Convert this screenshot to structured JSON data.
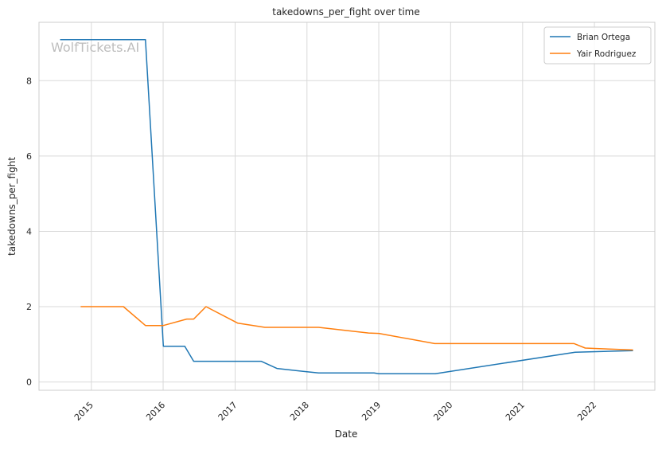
{
  "watermark": "WolfTickets.AI",
  "chart_data": {
    "type": "line",
    "title": "takedowns_per_fight over time",
    "xlabel": "Date",
    "ylabel": "takedowns_per_fight",
    "x_ticks": [
      "2015",
      "2016",
      "2017",
      "2018",
      "2019",
      "2020",
      "2021",
      "2022"
    ],
    "y_ticks": [
      0,
      2,
      4,
      6,
      8
    ],
    "xlim": [
      "2014-04-10",
      "2022-11-04"
    ],
    "ylim": [
      -0.22,
      9.55
    ],
    "grid": true,
    "legend_position": "top-right",
    "series": [
      {
        "name": "Brian Ortega",
        "color": "#1f77b4",
        "points": [
          [
            "2014-07-26",
            9.09
          ],
          [
            "2015-10-03",
            9.09
          ],
          [
            "2016-01-02",
            0.95
          ],
          [
            "2016-04-20",
            0.95
          ],
          [
            "2016-06-04",
            0.55
          ],
          [
            "2017-05-13",
            0.55
          ],
          [
            "2017-08-01",
            0.36
          ],
          [
            "2018-01-01",
            0.27
          ],
          [
            "2018-03-01",
            0.24
          ],
          [
            "2018-12-08",
            0.24
          ],
          [
            "2019-01-01",
            0.22
          ],
          [
            "2019-10-15",
            0.22
          ],
          [
            "2021-09-25",
            0.79
          ],
          [
            "2022-07-16",
            0.83
          ]
        ]
      },
      {
        "name": "Yair Rodriguez",
        "color": "#ff7f0e",
        "points": [
          [
            "2014-11-08",
            2.0
          ],
          [
            "2015-06-13",
            2.0
          ],
          [
            "2015-10-03",
            1.5
          ],
          [
            "2016-01-02",
            1.5
          ],
          [
            "2016-04-30",
            1.67
          ],
          [
            "2016-06-04",
            1.67
          ],
          [
            "2016-08-06",
            2.0
          ],
          [
            "2017-01-15",
            1.56
          ],
          [
            "2017-06-01",
            1.45
          ],
          [
            "2018-03-01",
            1.45
          ],
          [
            "2018-11-10",
            1.3
          ],
          [
            "2019-01-01",
            1.29
          ],
          [
            "2019-10-12",
            1.02
          ],
          [
            "2021-09-20",
            1.02
          ],
          [
            "2021-11-15",
            0.9
          ],
          [
            "2022-01-01",
            0.89
          ],
          [
            "2022-07-16",
            0.85
          ]
        ]
      }
    ]
  }
}
